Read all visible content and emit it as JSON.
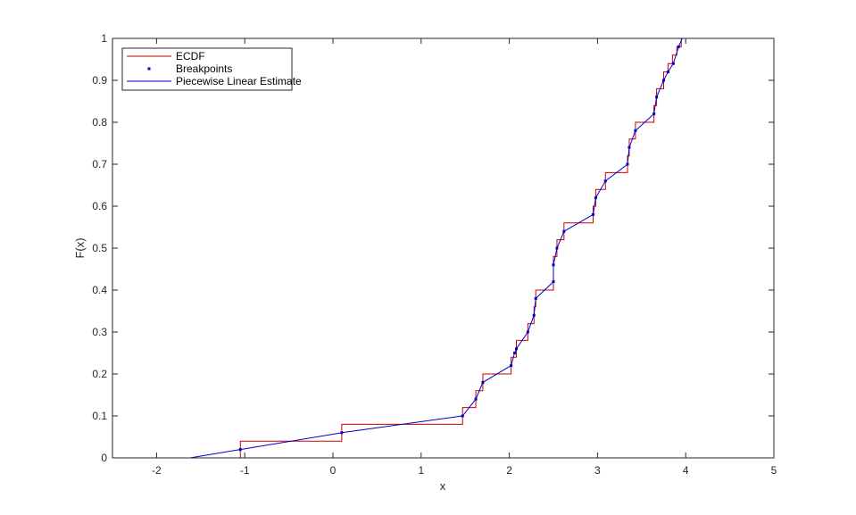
{
  "chart_data": {
    "type": "line",
    "title": "",
    "xlabel": "x",
    "ylabel": "F(x)",
    "xlim": [
      -2.5,
      5
    ],
    "ylim": [
      0,
      1
    ],
    "xticks": [
      -2,
      -1,
      0,
      1,
      2,
      3,
      4,
      5
    ],
    "xtick_labels": [
      "-2",
      "-1",
      "0",
      "1",
      "2",
      "3",
      "4",
      "5"
    ],
    "yticks": [
      0,
      0.1,
      0.2,
      0.3,
      0.4,
      0.5,
      0.6,
      0.7,
      0.8,
      0.9,
      1
    ],
    "ytick_labels": [
      "0",
      "0.1",
      "0.2",
      "0.3",
      "0.4",
      "0.5",
      "0.6",
      "0.7",
      "0.8",
      "0.9",
      "1"
    ],
    "grid": false,
    "legend_position": "top-left",
    "legend": [
      "ECDF",
      "Breakpoints",
      "Piecewise Linear Estimate"
    ],
    "ecdf": {
      "name": "ECDF",
      "color": "#cc0000",
      "steps": [
        [
          -1.05,
          0.04
        ],
        [
          0.1,
          0.08
        ],
        [
          1.47,
          0.12
        ],
        [
          1.62,
          0.16
        ],
        [
          1.7,
          0.2
        ],
        [
          2.02,
          0.24
        ],
        [
          2.08,
          0.28
        ],
        [
          2.21,
          0.32
        ],
        [
          2.28,
          0.36
        ],
        [
          2.3,
          0.4
        ],
        [
          2.5,
          0.44
        ],
        [
          2.5,
          0.48
        ],
        [
          2.54,
          0.52
        ],
        [
          2.62,
          0.56
        ],
        [
          2.95,
          0.6
        ],
        [
          2.98,
          0.64
        ],
        [
          3.09,
          0.68
        ],
        [
          3.34,
          0.72
        ],
        [
          3.36,
          0.76
        ],
        [
          3.43,
          0.8
        ],
        [
          3.64,
          0.84
        ],
        [
          3.67,
          0.88
        ],
        [
          3.75,
          0.92
        ],
        [
          3.8,
          0.94
        ],
        [
          3.85,
          0.96
        ],
        [
          3.9,
          0.98
        ],
        [
          3.95,
          1.0
        ]
      ],
      "x_end": 4.0
    },
    "breakpoints": {
      "name": "Breakpoints",
      "color": "#0000cc",
      "x": [
        -1.05,
        0.1,
        1.47,
        1.62,
        1.7,
        2.02,
        2.06,
        2.08,
        2.21,
        2.28,
        2.3,
        2.5,
        2.5,
        2.54,
        2.62,
        2.95,
        2.98,
        3.09,
        3.34,
        3.36,
        3.43,
        3.64,
        3.67,
        3.75,
        3.8,
        3.86,
        3.92
      ],
      "y": [
        0.02,
        0.06,
        0.1,
        0.14,
        0.18,
        0.22,
        0.25,
        0.26,
        0.3,
        0.34,
        0.38,
        0.42,
        0.46,
        0.5,
        0.54,
        0.58,
        0.62,
        0.66,
        0.7,
        0.74,
        0.78,
        0.82,
        0.86,
        0.9,
        0.92,
        0.94,
        0.98
      ]
    },
    "piecewise_linear": {
      "name": "Piecewise Linear Estimate",
      "color": "#0000cc",
      "x": [
        -1.62,
        -1.05,
        0.1,
        1.47,
        1.62,
        1.7,
        2.02,
        2.06,
        2.08,
        2.21,
        2.28,
        2.3,
        2.5,
        2.5,
        2.54,
        2.62,
        2.95,
        2.98,
        3.09,
        3.34,
        3.36,
        3.43,
        3.64,
        3.67,
        3.75,
        3.8,
        3.86,
        3.92,
        3.96
      ],
      "y": [
        0.0,
        0.02,
        0.06,
        0.1,
        0.14,
        0.18,
        0.22,
        0.25,
        0.26,
        0.3,
        0.34,
        0.38,
        0.42,
        0.46,
        0.5,
        0.54,
        0.58,
        0.62,
        0.66,
        0.7,
        0.74,
        0.78,
        0.82,
        0.86,
        0.9,
        0.92,
        0.94,
        0.98,
        1.0
      ]
    }
  }
}
